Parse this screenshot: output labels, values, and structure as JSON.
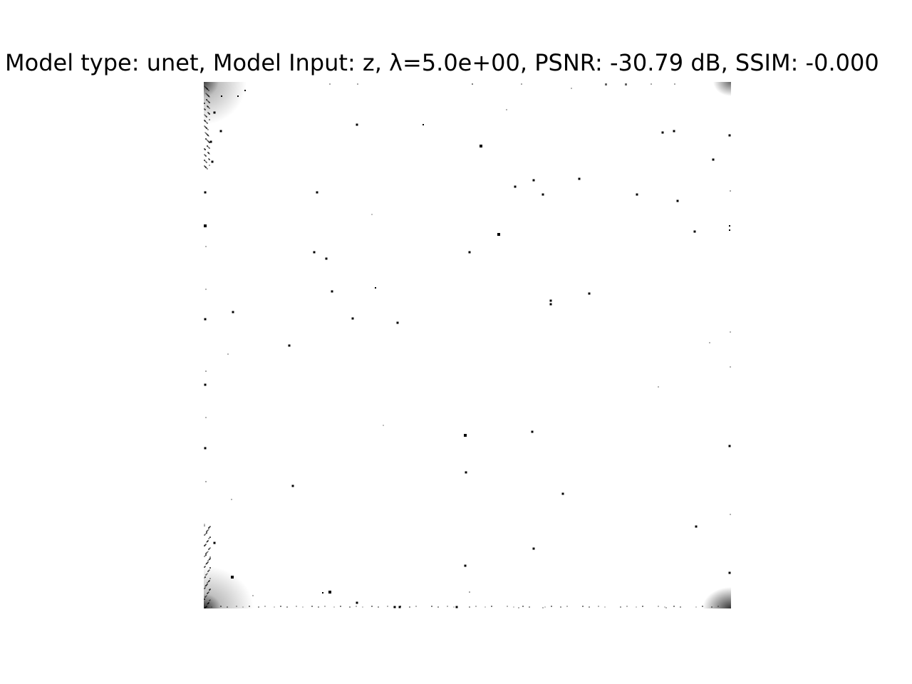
{
  "figure": {
    "title": "Model type: unet, Model Input: z, λ=5.0e+00, PSNR: -30.79 dB, SSIM: -0.000"
  },
  "image": {
    "description_free": true,
    "background": "#ffffff",
    "ink": "#000000"
  }
}
